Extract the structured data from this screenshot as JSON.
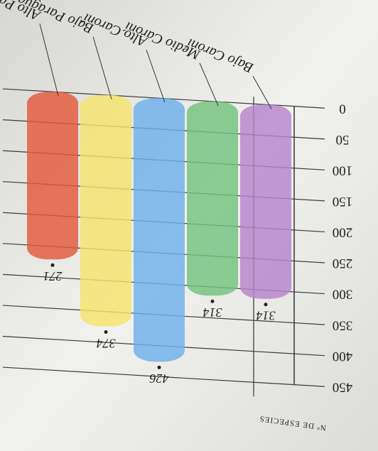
{
  "chart_data": {
    "type": "bar",
    "y_label": "Nº DE ESPECIES",
    "categories": [
      "Bajo Caroní",
      "Medio Caroní",
      "Alto Caroní",
      "Bajo Paragua",
      "Alto Paragua"
    ],
    "series": [
      {
        "name": null,
        "colors": [
          "#b784cc",
          "#72c27c",
          "#6cb0ea",
          "#f4e46c",
          "#e25a3c"
        ],
        "values": [
          314,
          314,
          426,
          374,
          271
        ]
      }
    ],
    "ylim": [
      0,
      450
    ],
    "yticks": [
      0,
      50,
      100,
      150,
      200,
      250,
      300,
      350,
      400,
      450
    ],
    "grid": true,
    "rotated": 180
  }
}
